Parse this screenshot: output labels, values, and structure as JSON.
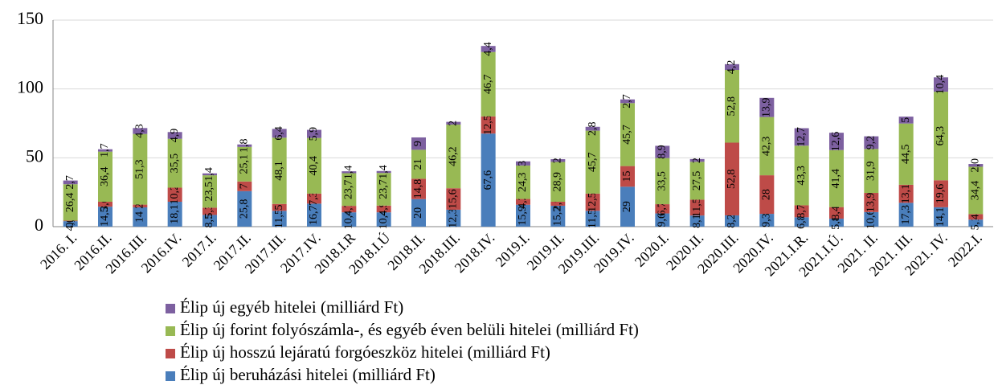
{
  "chart_data": {
    "type": "stacked_bar",
    "categories": [
      "2016. I.",
      "2016.II.",
      "2016.III.",
      "2016.IV.",
      "2017.I.",
      "2017.II.",
      "2017.III.",
      "2017.IV.",
      "2018.I.R",
      "2018.I.Ú",
      "2018.II.",
      "2018.III.",
      "2018.IV.",
      "2019.I.",
      "2019.II.",
      "2019.III.",
      "2019.IV.",
      "2020.I.",
      "2020.II.",
      "2020.III.",
      "2020.IV.",
      "2021.I.R.",
      "2021.I.Ú.",
      "2021. II.",
      "2021. III.",
      "2021. IV.",
      "2022.I."
    ],
    "series": [
      {
        "name": "Élip új beruházási hitelei (milliárd Ft)",
        "color": "#4a7ebb",
        "values": [
          4,
          14.5,
          14,
          18.1,
          8.5,
          25.8,
          11.5,
          16.7,
          10.4,
          10.4,
          20,
          12.3,
          67.6,
          15.9,
          15.2,
          11.5,
          29,
          9.6,
          8.1,
          8.2,
          9.3,
          6.8,
          5.8,
          10.6,
          17.3,
          14.1,
          5.1
        ],
        "value_labels": [
          "4,0",
          "14,5",
          "14",
          "18,1",
          "8,5",
          "25,8",
          "11,5",
          "16,7",
          "10,4",
          "10,4",
          "20",
          "12,3",
          "67,6",
          "15,9",
          "15,2",
          "11,5",
          "29",
          "9,6",
          "8,1",
          "8,2",
          "9,3",
          "6,8",
          "5,8",
          "10,6",
          "17,3",
          "14,1",
          "5,1"
        ]
      },
      {
        "name": "Élip új hosszú lejáratú forgóeszköz hitelei (milliárd Ft)",
        "color": "#be4b48",
        "values": [
          0.4,
          3.6,
          2,
          10.2,
          5.3,
          7,
          5,
          7.3,
          4.7,
          4.9,
          14.8,
          15.6,
          12.5,
          4.2,
          2.9,
          12.5,
          15,
          6.7,
          11.5,
          52.8,
          28,
          8.7,
          8.4,
          13.9,
          13.1,
          19.6,
          4
        ],
        "value_labels": [
          "0,4",
          "3,6",
          "2",
          "10,2",
          "5,3",
          "7",
          "5",
          "7,3",
          "4,7",
          "4,9",
          "14,8",
          "15,6",
          "12,5",
          "4,2",
          "2,9",
          "12,5",
          "15",
          "6,7",
          "11,5",
          "52,8",
          "28",
          "8,7",
          "8,4",
          "13,9",
          "13,1",
          "19,6",
          "4"
        ]
      },
      {
        "name": "Élip új forint folyószámla-, és egyéb éven belüli hitelei (milliárd Ft)",
        "color": "#98b954",
        "values": [
          26.4,
          36.4,
          51.3,
          35.5,
          23.5,
          25.1,
          48.1,
          40.4,
          23.7,
          23.7,
          21,
          46.2,
          46.7,
          24.3,
          28.9,
          45.7,
          45.7,
          33.5,
          27.5,
          52.8,
          42.3,
          43.3,
          41.4,
          31.9,
          44.5,
          64.3,
          34.4
        ],
        "value_labels": [
          "26,4",
          "36,4",
          "51,3",
          "35,5",
          "23,5",
          "25,1",
          "48,1",
          "40,4",
          "23,7",
          "23,7",
          "21",
          "46,2",
          "46,7",
          "24,3",
          "28,9",
          "45,7",
          "45,7",
          "33,5",
          "27,5",
          "52,8",
          "42,3",
          "43,3",
          "41,4",
          "31,9",
          "44,5",
          "64,3",
          "34,4"
        ]
      },
      {
        "name": "Élip új egyéb hitelei (milliárd Ft)",
        "color": "#7d60a0",
        "values": [
          2.7,
          1.7,
          4.3,
          4.9,
          1.4,
          1.8,
          6.4,
          5.9,
          1.4,
          1.4,
          9,
          2,
          4.4,
          3,
          2,
          2.8,
          2.7,
          8.9,
          2,
          4.2,
          13.9,
          12.7,
          12.6,
          9.2,
          5,
          10.4,
          2
        ],
        "value_labels": [
          "2,7",
          "1,7",
          "4,3",
          "4,9",
          "1,4",
          "1,8",
          "6,4",
          "5,9",
          "1,4",
          "1,4",
          "9",
          "2",
          "4,4",
          "3",
          "2",
          "2,8",
          "2,7",
          "8,9",
          "2",
          "4,2",
          "13,9",
          "12,7",
          "12,6",
          "9,2",
          "5",
          "10,4",
          "2,0"
        ]
      }
    ],
    "ylim": [
      0,
      150
    ],
    "yticks": [
      0,
      50,
      100,
      150
    ],
    "grid": true
  }
}
